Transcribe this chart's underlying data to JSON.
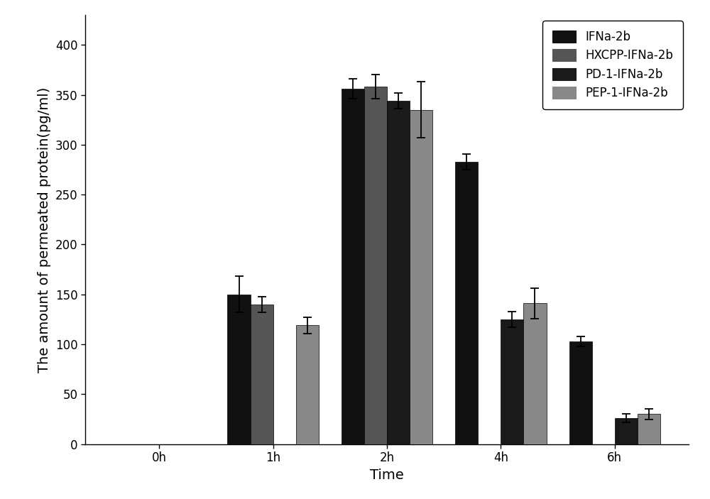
{
  "categories": [
    "0h",
    "1h",
    "2h",
    "4h",
    "6h"
  ],
  "series": [
    {
      "label": "IFNa-2b",
      "color": "#111111",
      "values": [
        0,
        150,
        356,
        283,
        103
      ],
      "errors": [
        0,
        18,
        10,
        8,
        5
      ]
    },
    {
      "label": "HXCPP-IFNa-2b",
      "color": "#555555",
      "values": [
        0,
        140,
        358,
        0,
        0
      ],
      "errors": [
        0,
        8,
        12,
        0,
        0
      ]
    },
    {
      "label": "PD-1-IFNa-2b",
      "color": "#1a1a1a",
      "values": [
        0,
        0,
        344,
        125,
        26
      ],
      "errors": [
        0,
        0,
        8,
        8,
        4
      ]
    },
    {
      "label": "PEP-1-IFNa-2b",
      "color": "#888888",
      "values": [
        0,
        119,
        335,
        141,
        30
      ],
      "errors": [
        0,
        8,
        28,
        15,
        5
      ]
    }
  ],
  "ylabel": "The amount of permeated protein(pg/ml)",
  "xlabel": "Time",
  "ylim": [
    0,
    430
  ],
  "yticks": [
    0,
    50,
    100,
    150,
    200,
    250,
    300,
    350,
    400
  ],
  "bar_width": 0.2,
  "legend_fontsize": 12,
  "axis_label_fontsize": 14,
  "tick_fontsize": 12
}
